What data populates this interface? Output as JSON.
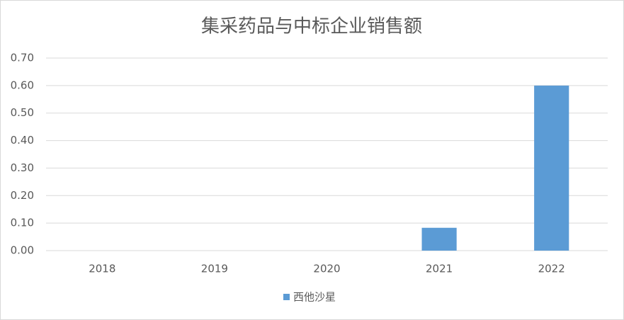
{
  "chart_data": {
    "type": "bar",
    "title": "集采药品与中标企业销售额",
    "categories": [
      "2018",
      "2019",
      "2020",
      "2021",
      "2022"
    ],
    "series": [
      {
        "name": "西他沙星",
        "color": "#5b9bd5",
        "values": [
          0,
          0,
          0,
          0.083,
          0.6
        ]
      }
    ],
    "ylim": [
      0,
      0.7
    ],
    "yticks": [
      {
        "value": 0,
        "label": "0.00"
      },
      {
        "value": 0.1,
        "label": "0.10"
      },
      {
        "value": 0.2,
        "label": "0.20"
      },
      {
        "value": 0.3,
        "label": "0.30"
      },
      {
        "value": 0.4,
        "label": "0.40"
      },
      {
        "value": 0.5,
        "label": "0.50"
      },
      {
        "value": 0.6,
        "label": "0.60"
      },
      {
        "value": 0.7,
        "label": "0.70"
      }
    ],
    "grid": true,
    "legend": "bottom"
  }
}
